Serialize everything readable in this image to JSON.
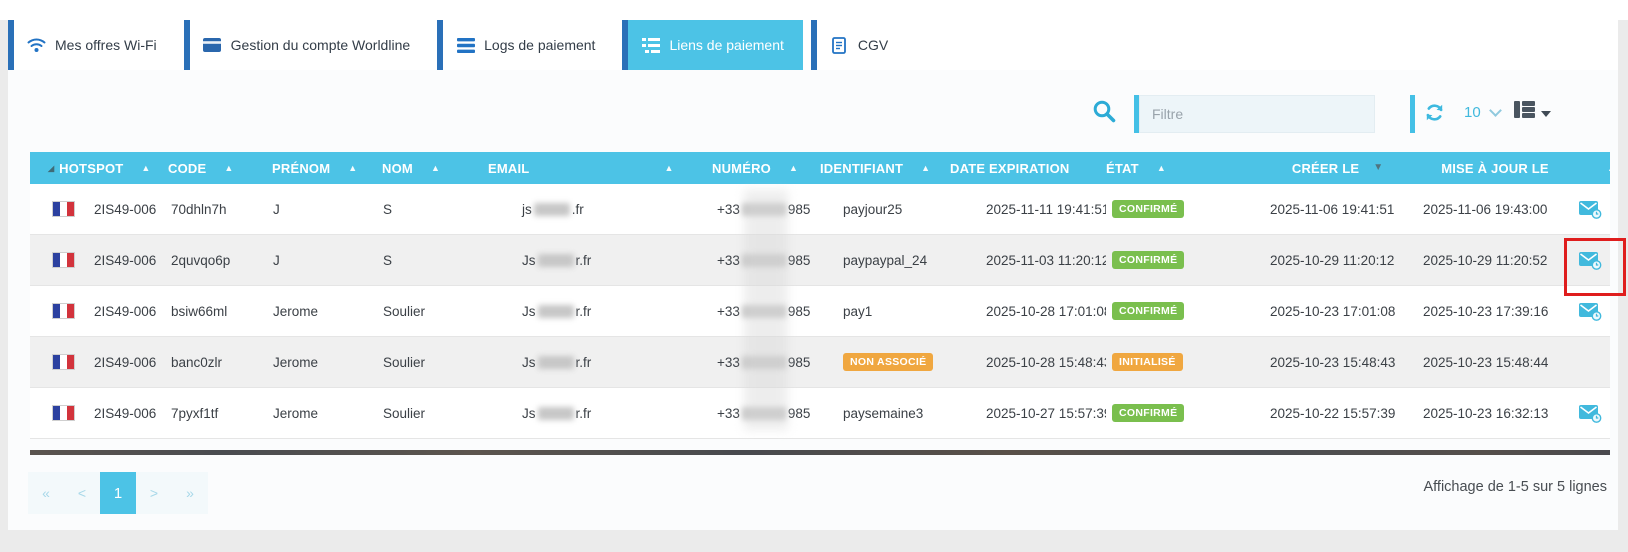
{
  "tabs": [
    {
      "label": "Mes offres Wi-Fi",
      "icon": "wifi-icon",
      "active": false
    },
    {
      "label": "Gestion du compte Worldline",
      "icon": "card-icon",
      "active": false
    },
    {
      "label": "Logs de paiement",
      "icon": "logs-icon",
      "active": false
    },
    {
      "label": "Liens de paiement",
      "icon": "links-icon",
      "active": true
    },
    {
      "label": "CGV",
      "icon": "cgv-icon",
      "active": false
    }
  ],
  "toolbar": {
    "search_icon": "search-icon",
    "filter_placeholder": "Filtre",
    "refresh_icon": "refresh-icon",
    "page_size": "10",
    "columns_icon": "columns-icon"
  },
  "table": {
    "columns": [
      {
        "label": "HOTSPOT",
        "sort": "asc",
        "corner": true
      },
      {
        "label": "CODE",
        "sort": "asc"
      },
      {
        "label": "PRÉNOM",
        "sort": "asc"
      },
      {
        "label": "NOM",
        "sort": "asc"
      },
      {
        "label": "EMAIL",
        "sort": "asc",
        "arrow_gap": true
      },
      {
        "label": "NUMÉRO",
        "sort": "asc"
      },
      {
        "label": "IDENTIFIANT",
        "sort": "asc"
      },
      {
        "label": "DATE EXPIRATION",
        "sort": null
      },
      {
        "label": "ÉTAT",
        "sort": "asc"
      },
      {
        "label": "CRÉER LE",
        "sort": "desc-active",
        "center": true
      },
      {
        "label": "MISE À JOUR LE",
        "sort": "asc-clipped",
        "center": true
      },
      {
        "label": "",
        "sort": null
      }
    ],
    "rows": [
      {
        "flag": "fr",
        "hotspot": "2IS49-006",
        "code": "70dhln7h",
        "prenom": "J",
        "nom": "S",
        "email": {
          "prefix": "js",
          "redacted": true,
          "suffix": ".fr"
        },
        "numero": {
          "prefix": "+33",
          "redacted": true,
          "suffix": "985"
        },
        "identifiant": "payjour25",
        "date_expiration": "2025-11-11 19:41:51",
        "etat": {
          "label": "CONFIRMÉ",
          "type": "success"
        },
        "creer_le": "2025-11-06 19:41:51",
        "mise_a_jour_le": "2025-11-06 19:43:00",
        "mail_action": true,
        "highlighted": false
      },
      {
        "flag": "fr",
        "hotspot": "2IS49-006",
        "code": "2quvqo6p",
        "prenom": "J",
        "nom": "S",
        "email": {
          "prefix": "Js",
          "redacted": true,
          "suffix": "r.fr"
        },
        "numero": {
          "prefix": "+33",
          "redacted": true,
          "suffix": "985"
        },
        "identifiant": "paypaypal_24",
        "date_expiration": "2025-11-03 11:20:12",
        "etat": {
          "label": "CONFIRMÉ",
          "type": "success"
        },
        "creer_le": "2025-10-29 11:20:12",
        "mise_a_jour_le": "2025-10-29 11:20:52",
        "mail_action": true,
        "highlighted": true
      },
      {
        "flag": "fr",
        "hotspot": "2IS49-006",
        "code": "bsiw66ml",
        "prenom": "Jerome",
        "nom": "Soulier",
        "email": {
          "prefix": "Js",
          "redacted": true,
          "suffix": "r.fr"
        },
        "numero": {
          "prefix": "+33",
          "redacted": true,
          "suffix": "985"
        },
        "identifiant": "pay1",
        "date_expiration": "2025-10-28 17:01:08",
        "etat": {
          "label": "CONFIRMÉ",
          "type": "success"
        },
        "creer_le": "2025-10-23 17:01:08",
        "mise_a_jour_le": "2025-10-23 17:39:16",
        "mail_action": true,
        "highlighted": false
      },
      {
        "flag": "fr",
        "hotspot": "2IS49-006",
        "code": "banc0zlr",
        "prenom": "Jerome",
        "nom": "Soulier",
        "email": {
          "prefix": "Js",
          "redacted": true,
          "suffix": "r.fr"
        },
        "numero": {
          "prefix": "+33",
          "redacted": true,
          "suffix": "985"
        },
        "identifiant": {
          "badge": "NON ASSOCIÉ",
          "type": "warning"
        },
        "date_expiration": "2025-10-28 15:48:43",
        "etat": {
          "label": "INITIALISÉ",
          "type": "warning"
        },
        "creer_le": "2025-10-23 15:48:43",
        "mise_a_jour_le": "2025-10-23 15:48:44",
        "mail_action": false,
        "highlighted": false
      },
      {
        "flag": "fr",
        "hotspot": "2IS49-006",
        "code": "7pyxf1tf",
        "prenom": "Jerome",
        "nom": "Soulier",
        "email": {
          "prefix": "Js",
          "redacted": true,
          "suffix": "r.fr"
        },
        "numero": {
          "prefix": "+33",
          "redacted": true,
          "suffix": "985"
        },
        "identifiant": "paysemaine3",
        "date_expiration": "2025-10-27 15:57:39",
        "etat": {
          "label": "CONFIRMÉ",
          "type": "success"
        },
        "creer_le": "2025-10-22 15:57:39",
        "mise_a_jour_le": "2025-10-23 16:32:13",
        "mail_action": true,
        "highlighted": false
      }
    ]
  },
  "pagination": {
    "buttons": [
      "«",
      "<",
      "1",
      ">",
      "»"
    ],
    "active": "1",
    "summary": "Affichage de 1-5 sur 5 lignes"
  },
  "colors": {
    "accent_cyan": "#4cc3e6",
    "tab_bar_blue": "#2a70b8",
    "badge_green": "#7abf4e",
    "badge_orange": "#f0a740",
    "annotation_red": "#df1d1d"
  }
}
